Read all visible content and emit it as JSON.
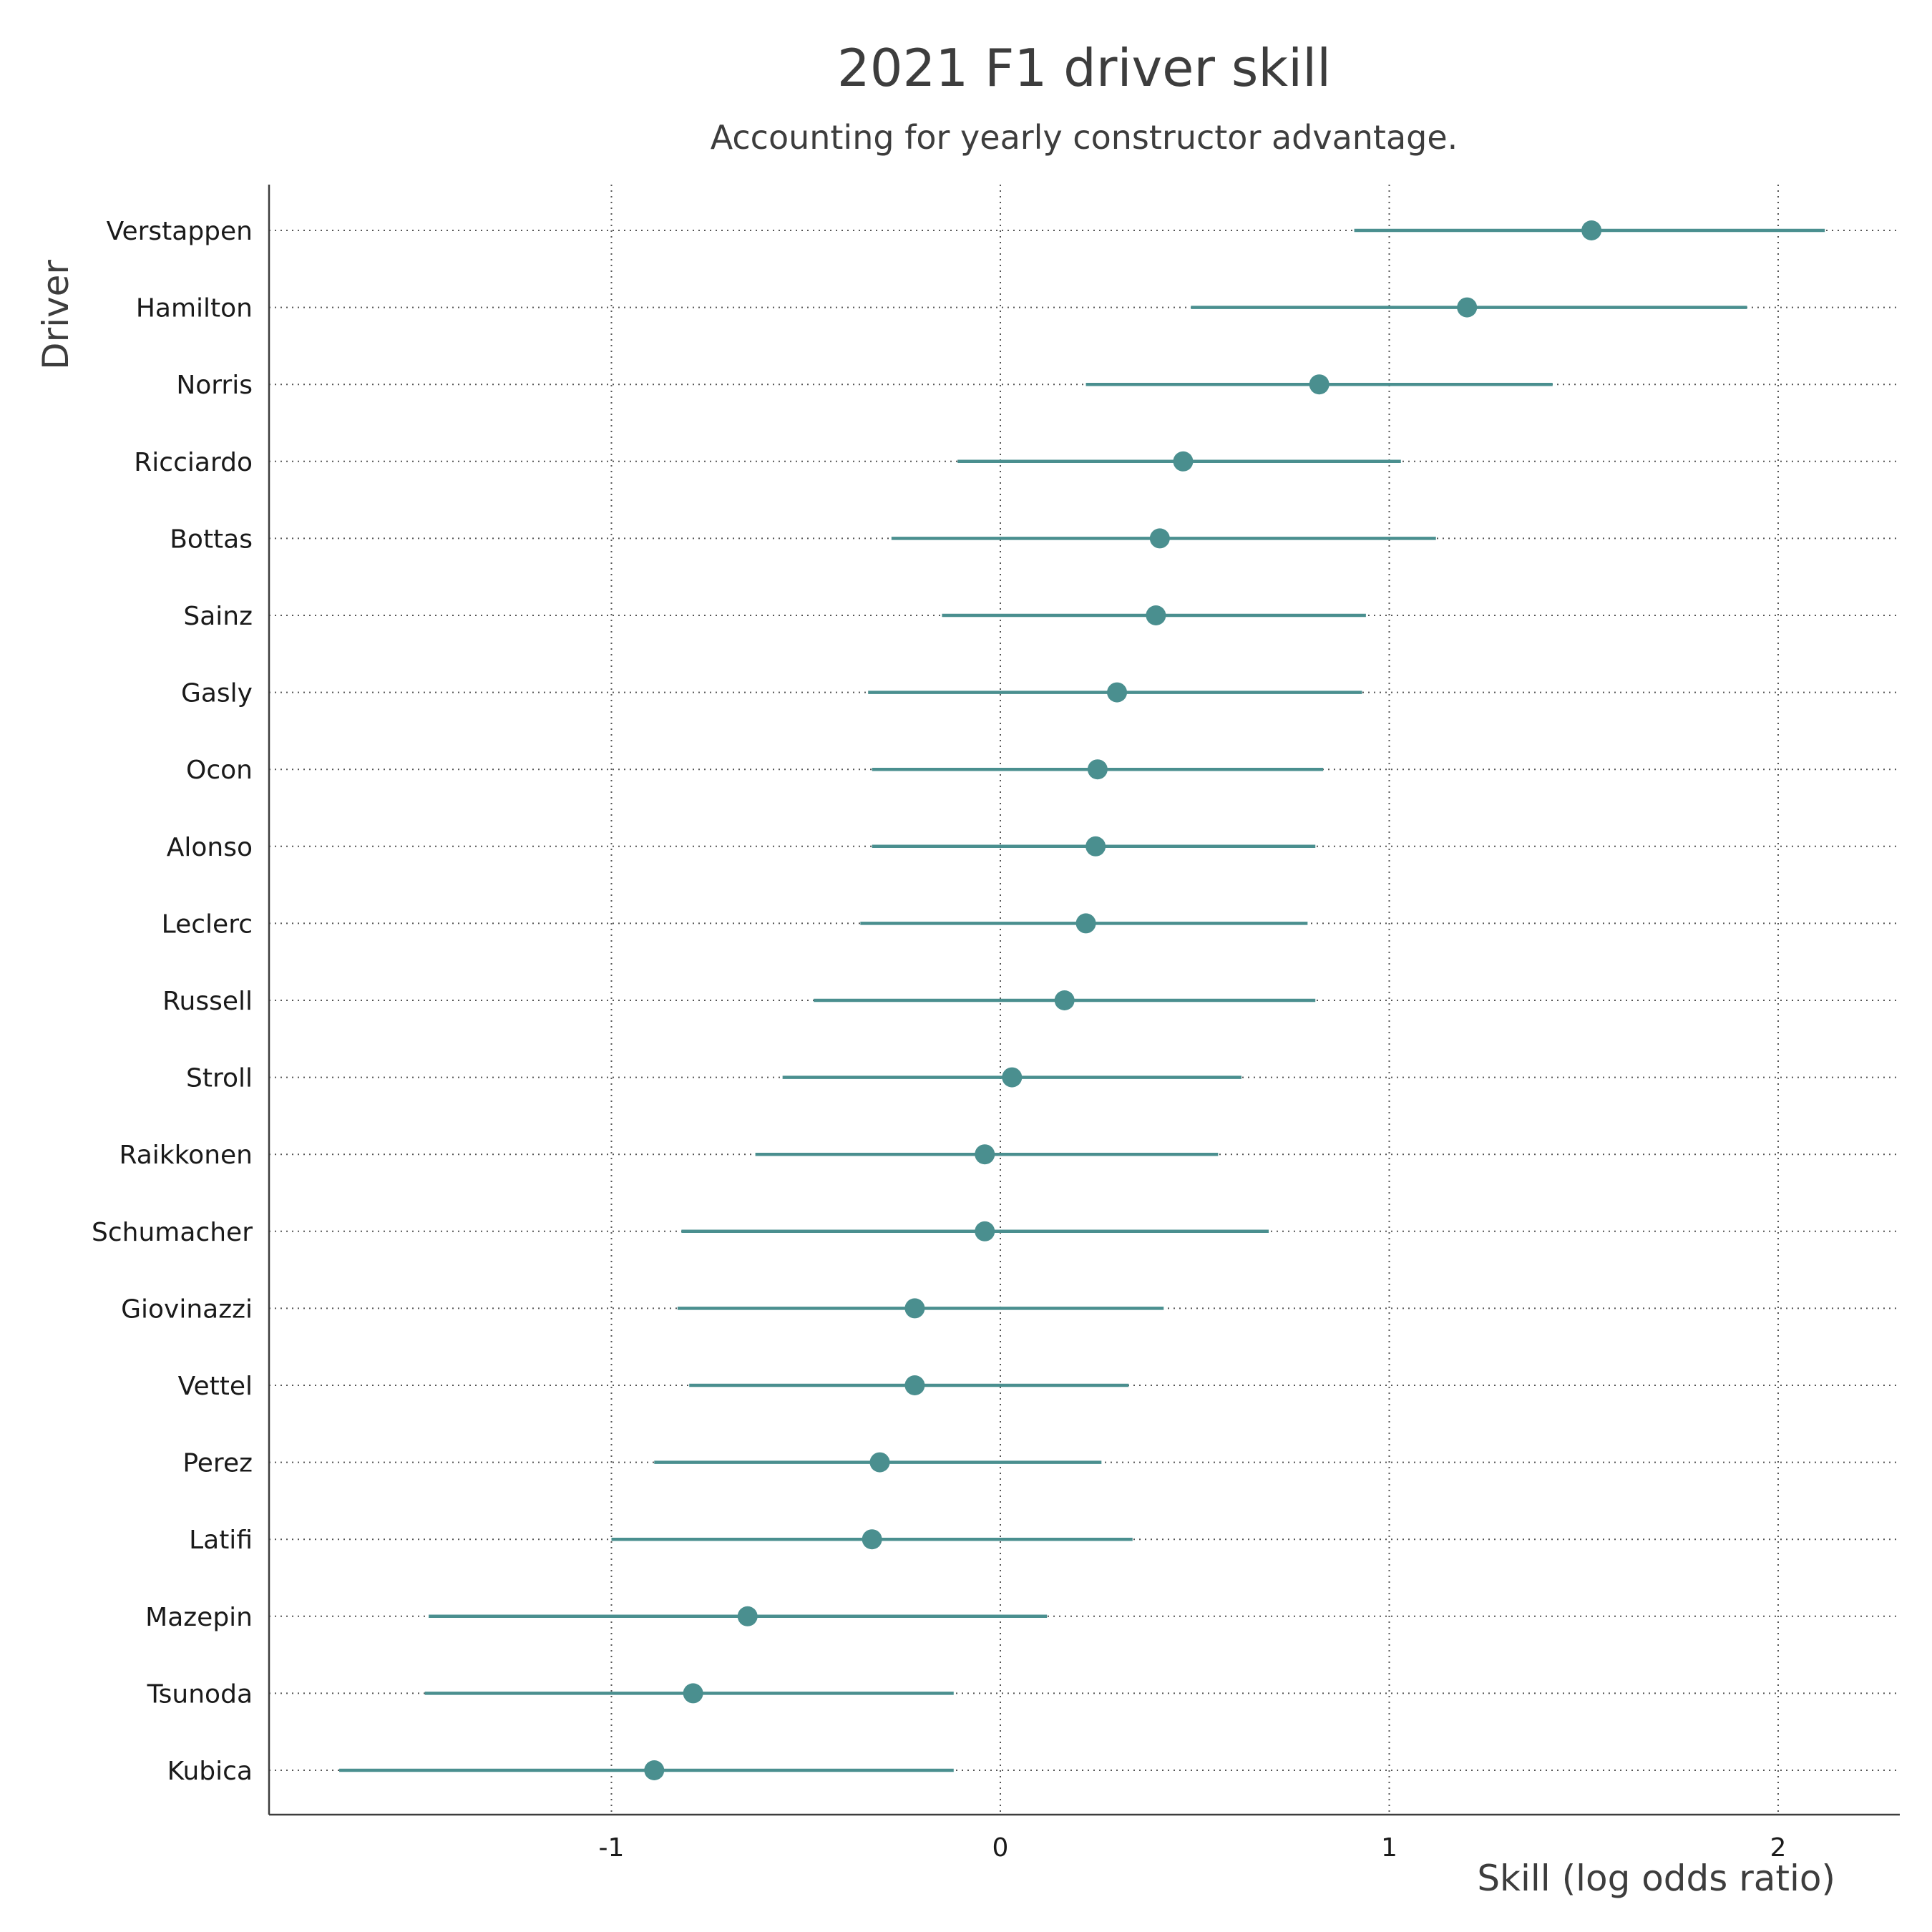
{
  "chart_data": {
    "type": "scatter",
    "title": "2021 F1 driver skill",
    "subtitle": "Accounting for yearly constructor advantage.",
    "xlabel": "Skill (log odds ratio)",
    "ylabel": "Driver",
    "xlim": [
      -1.88,
      2.32
    ],
    "xticks": [
      -1,
      0,
      1,
      2
    ],
    "xtick_labels": [
      "-1",
      "0",
      "1",
      "2"
    ],
    "grid": "dotted, major x and y",
    "point_color": "#4a8f8f",
    "interval_color": "#4a8f8f",
    "drivers": [
      "Verstappen",
      "Hamilton",
      "Norris",
      "Ricciardo",
      "Bottas",
      "Sainz",
      "Gasly",
      "Ocon",
      "Alonso",
      "Leclerc",
      "Russell",
      "Stroll",
      "Raikkonen",
      "Schumacher",
      "Giovinazzi",
      "Vettel",
      "Perez",
      "Latifi",
      "Mazepin",
      "Tsunoda",
      "Kubica"
    ],
    "estimate": [
      1.52,
      1.2,
      0.82,
      0.47,
      0.41,
      0.4,
      0.3,
      0.25,
      0.245,
      0.22,
      0.165,
      0.03,
      -0.04,
      -0.04,
      -0.22,
      -0.22,
      -0.31,
      -0.33,
      -0.65,
      -0.79,
      -0.89
    ],
    "lower": [
      0.91,
      0.49,
      0.22,
      -0.11,
      -0.28,
      -0.15,
      -0.34,
      -0.33,
      -0.33,
      -0.36,
      -0.48,
      -0.56,
      -0.63,
      -0.82,
      -0.83,
      -0.8,
      -0.89,
      -1.0,
      -1.47,
      -1.48,
      -1.7
    ],
    "upper": [
      2.12,
      1.92,
      1.42,
      1.03,
      1.12,
      0.94,
      0.93,
      0.83,
      0.81,
      0.79,
      0.81,
      0.62,
      0.56,
      0.69,
      0.42,
      0.33,
      0.26,
      0.34,
      0.12,
      -0.12,
      -0.12
    ]
  }
}
